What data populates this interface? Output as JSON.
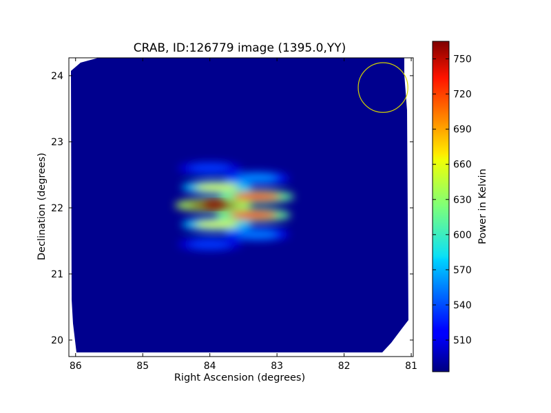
{
  "chart_data": {
    "type": "heatmap",
    "title": "CRAB, ID:126779 image (1395.0,YY)",
    "xlabel": "Right Ascension (degrees)",
    "ylabel": "Declination (degrees)",
    "xlim": [
      86.1,
      80.97
    ],
    "ylim": [
      19.75,
      24.27
    ],
    "x_ticks": [
      86,
      85,
      84,
      83,
      82,
      81
    ],
    "y_ticks": [
      20,
      21,
      22,
      23,
      24
    ],
    "colorbar": {
      "label": "Power in Kelvin",
      "colormap": "jet",
      "min": 483,
      "max": 765,
      "ticks": [
        510,
        540,
        570,
        600,
        630,
        660,
        690,
        720,
        750
      ]
    },
    "background_level": 485,
    "peaks": [
      {
        "ra": 83.95,
        "dec": 22.04,
        "power": 765
      },
      {
        "ra": 83.3,
        "dec": 22.17,
        "power": 728
      },
      {
        "ra": 83.35,
        "dec": 21.89,
        "power": 730
      },
      {
        "ra": 83.9,
        "dec": 21.75,
        "power": 650
      },
      {
        "ra": 83.9,
        "dec": 22.31,
        "power": 650
      },
      {
        "ra": 83.3,
        "dec": 22.45,
        "power": 560
      },
      {
        "ra": 83.3,
        "dec": 21.6,
        "power": 555
      },
      {
        "ra": 84.0,
        "dec": 22.6,
        "power": 535
      },
      {
        "ra": 84.0,
        "dec": 21.45,
        "power": 535
      }
    ],
    "annotation": {
      "shape": "circle",
      "ra": 81.42,
      "dec": 23.82,
      "radius_deg": 0.37,
      "color": "#d4d400"
    }
  }
}
